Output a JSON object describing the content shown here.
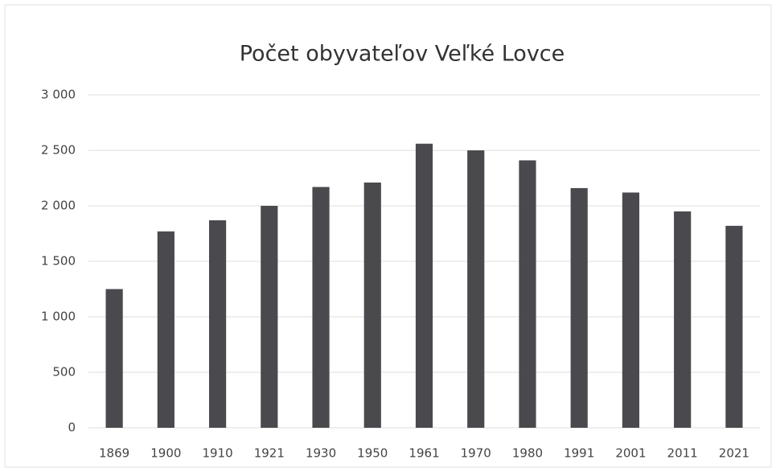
{
  "chart_data": {
    "type": "bar",
    "title": "Počet obyvateľov Veľké Lovce",
    "categories": [
      "1869",
      "1900",
      "1910",
      "1921",
      "1930",
      "1950",
      "1961",
      "1970",
      "1980",
      "1991",
      "2001",
      "2011",
      "2021"
    ],
    "values": [
      1250,
      1770,
      1870,
      2000,
      2170,
      2210,
      2560,
      2500,
      2410,
      2160,
      2120,
      1950,
      1820
    ],
    "color": "#4a4a4e",
    "ylim": [
      0,
      3000
    ],
    "yticks": [
      0,
      500,
      {
        "value": 1000,
        "label": "1 000"
      },
      {
        "value": 1500,
        "label": "1 500"
      },
      {
        "value": 2000,
        "label": "2 000"
      },
      {
        "value": 2500,
        "label": "2 500"
      },
      {
        "value": 3000,
        "label": "3 000"
      }
    ],
    "grid": true
  }
}
